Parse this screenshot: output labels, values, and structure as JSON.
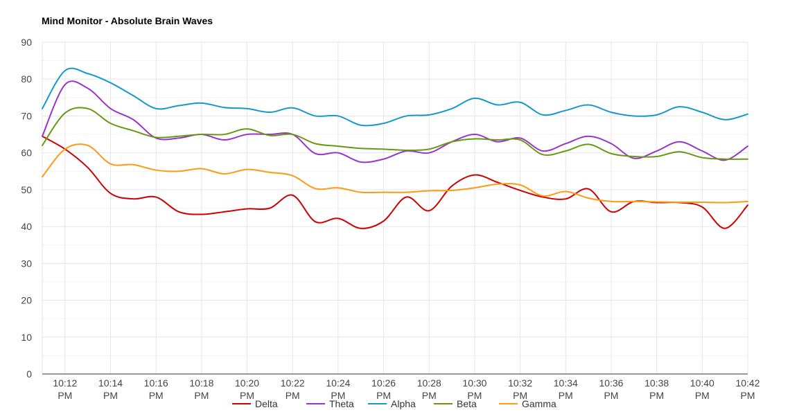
{
  "chart_data": {
    "type": "line",
    "title": "Mind Monitor -  Absolute Brain Waves",
    "xlabel": "",
    "ylabel": "",
    "ylim": [
      0,
      90
    ],
    "yticks": [
      0,
      10,
      20,
      30,
      40,
      50,
      60,
      70,
      80,
      90
    ],
    "grid": true,
    "legend": "bottom",
    "x_tick_labels": [
      {
        "t": "10:12",
        "suffix": "PM"
      },
      {
        "t": "10:14",
        "suffix": "PM"
      },
      {
        "t": "10:16",
        "suffix": "PM"
      },
      {
        "t": "10:18",
        "suffix": "PM"
      },
      {
        "t": "10:20",
        "suffix": "PM"
      },
      {
        "t": "10:22",
        "suffix": "PM"
      },
      {
        "t": "10:24",
        "suffix": "PM"
      },
      {
        "t": "10:26",
        "suffix": "PM"
      },
      {
        "t": "10:28",
        "suffix": "PM"
      },
      {
        "t": "10:30",
        "suffix": "PM"
      },
      {
        "t": "10:32",
        "suffix": "PM"
      },
      {
        "t": "10:34",
        "suffix": "PM"
      },
      {
        "t": "10:36",
        "suffix": "PM"
      },
      {
        "t": "10:38",
        "suffix": "PM"
      },
      {
        "t": "10:40",
        "suffix": "PM"
      },
      {
        "t": "10:42",
        "suffix": "PM"
      }
    ],
    "x": [
      "10:11 PM",
      "10:12 PM",
      "10:13 PM",
      "10:14 PM",
      "10:15 PM",
      "10:16 PM",
      "10:17 PM",
      "10:18 PM",
      "10:19 PM",
      "10:20 PM",
      "10:21 PM",
      "10:22 PM",
      "10:23 PM",
      "10:24 PM",
      "10:25 PM",
      "10:26 PM",
      "10:27 PM",
      "10:28 PM",
      "10:29 PM",
      "10:30 PM",
      "10:31 PM",
      "10:32 PM",
      "10:33 PM",
      "10:34 PM",
      "10:35 PM",
      "10:36 PM",
      "10:37 PM",
      "10:38 PM",
      "10:39 PM",
      "10:40 PM",
      "10:41 PM",
      "10:42 PM"
    ],
    "series": [
      {
        "name": "Delta",
        "color": "#cc0000",
        "values": [
          64.5,
          61,
          56,
          49,
          47.5,
          48,
          44,
          43.3,
          44,
          44.8,
          45,
          48.5,
          41.3,
          42.2,
          39.5,
          41.5,
          48,
          44.3,
          51,
          54,
          52,
          49.8,
          48,
          47.5,
          50.2,
          44,
          46.8,
          46.5,
          46.5,
          45.3,
          39.5,
          45.8
        ]
      },
      {
        "name": "Theta",
        "color": "#9933cc",
        "values": [
          64.5,
          78.5,
          77.5,
          72,
          69,
          64,
          64,
          65,
          63.5,
          65,
          65,
          65,
          59.8,
          60,
          57.5,
          58.3,
          60.5,
          60,
          63,
          65,
          63,
          64,
          60.5,
          62.5,
          64.5,
          62.5,
          58.5,
          60.5,
          63,
          60.5,
          58,
          61.8
        ]
      },
      {
        "name": "Alpha",
        "color": "#1199cc",
        "values": [
          72,
          82.3,
          81.5,
          79,
          75.5,
          72,
          72.8,
          73.5,
          72.3,
          72,
          71,
          72.2,
          70,
          70,
          67.5,
          68,
          70,
          70.3,
          72,
          74.8,
          73,
          73.7,
          70.3,
          71.5,
          73,
          71,
          70,
          70.3,
          72.5,
          71,
          69,
          70.5
        ]
      },
      {
        "name": "Beta",
        "color": "#669911",
        "values": [
          62,
          70.8,
          72,
          68,
          66,
          64.2,
          64.5,
          65,
          65,
          66.5,
          64.7,
          65,
          62.5,
          61.8,
          61.2,
          61,
          60.7,
          61,
          63,
          63.8,
          63.5,
          63.5,
          59.5,
          60.5,
          62.3,
          59.8,
          59,
          59,
          60.3,
          58.7,
          58.3,
          58.3
        ]
      },
      {
        "name": "Gamma",
        "color": "#ff9911",
        "values": [
          53.5,
          61,
          62,
          57,
          56.8,
          55.3,
          55,
          55.7,
          54.3,
          55.5,
          54.7,
          53.8,
          50.3,
          50.5,
          49.3,
          49.3,
          49.3,
          49.7,
          49.8,
          50.5,
          51.5,
          51.3,
          48.3,
          49.5,
          47.7,
          46.8,
          46.8,
          46.7,
          46.6,
          46.6,
          46.5,
          46.8
        ]
      }
    ]
  }
}
